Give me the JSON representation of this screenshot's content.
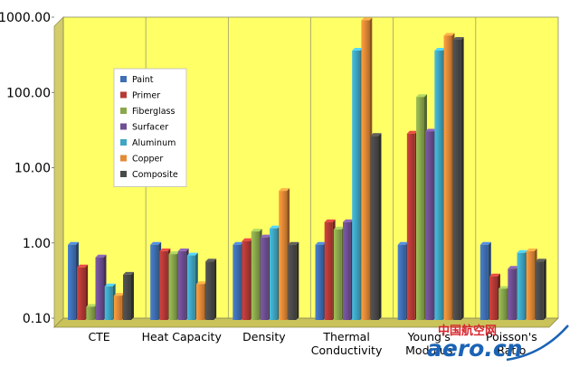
{
  "chart_data": {
    "type": "bar",
    "scale": "log",
    "ylim": [
      0.1,
      1000
    ],
    "y_tick_labels": [
      "0.10",
      "1.00",
      "10.00",
      "100.00",
      "1000.00"
    ],
    "categories": [
      {
        "lines": [
          "CTE"
        ]
      },
      {
        "lines": [
          "Heat Capacity"
        ]
      },
      {
        "lines": [
          "Density"
        ]
      },
      {
        "lines": [
          "Thermal",
          "Conductivity"
        ]
      },
      {
        "lines": [
          "Young's",
          "Modulus"
        ]
      },
      {
        "lines": [
          "Poisson's",
          "Ratio"
        ]
      }
    ],
    "series": [
      {
        "name": "Paint",
        "color": "#3f6fb5",
        "values": [
          1.0,
          1.0,
          1.0,
          1.0,
          1.0,
          1.0
        ]
      },
      {
        "name": "Primer",
        "color": "#b73a36",
        "values": [
          0.5,
          0.82,
          1.12,
          2.0,
          30,
          0.38
        ]
      },
      {
        "name": "Fiberglass",
        "color": "#8aa84b",
        "values": [
          0.15,
          0.75,
          1.5,
          1.6,
          92,
          0.26
        ]
      },
      {
        "name": "Surfacer",
        "color": "#6e4f93",
        "values": [
          0.68,
          0.82,
          1.25,
          2.0,
          32,
          0.48
        ]
      },
      {
        "name": "Aluminum",
        "color": "#3ea6c4",
        "values": [
          0.28,
          0.72,
          1.65,
          380,
          380,
          0.78
        ]
      },
      {
        "name": "Copper",
        "color": "#e38a37",
        "values": [
          0.21,
          0.3,
          5.2,
          960,
          600,
          0.82
        ]
      },
      {
        "name": "Composite",
        "color": "#4a4a4a",
        "values": [
          0.4,
          0.6,
          1.0,
          28,
          530,
          0.6
        ]
      }
    ],
    "grid": false,
    "legend_position": "inside-left",
    "plot_background": "#ffff66",
    "wall_color": "#d2cc6a"
  },
  "watermark": {
    "chinese": "中国航空网",
    "domain": "aero.cn"
  }
}
